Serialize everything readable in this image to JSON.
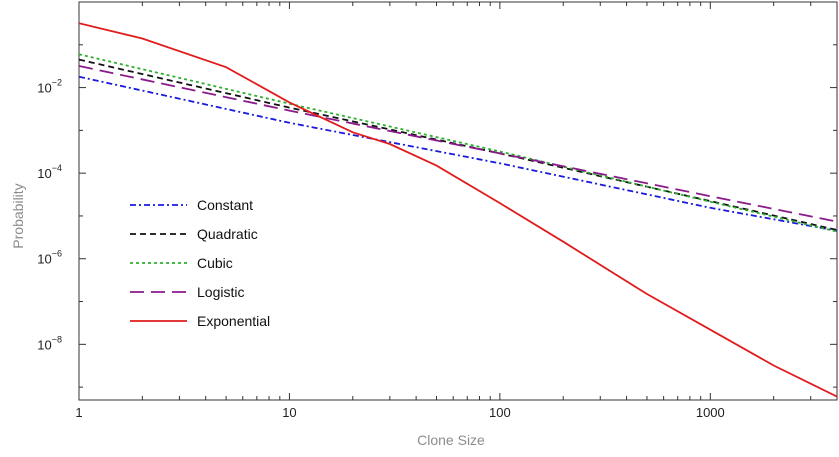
{
  "chart_data": {
    "type": "line",
    "xlabel": "Clone Size",
    "ylabel": "Probability",
    "xscale": "log",
    "yscale": "log",
    "xlim": [
      1,
      4000
    ],
    "ylim": [
      5e-10,
      1
    ],
    "grid": false,
    "legend_position": "middle-left",
    "x_ticks": [
      {
        "value": 1,
        "label": "1"
      },
      {
        "value": 10,
        "label": "10"
      },
      {
        "value": 100,
        "label": "100"
      },
      {
        "value": 1000,
        "label": "1000"
      }
    ],
    "y_ticks": [
      {
        "value": 0.01,
        "base": "10",
        "exp": "−2"
      },
      {
        "value": 0.0001,
        "base": "10",
        "exp": "−4"
      },
      {
        "value": 1e-06,
        "base": "10",
        "exp": "−6"
      },
      {
        "value": 1e-08,
        "base": "10",
        "exp": "−8"
      }
    ],
    "series": [
      {
        "name": "Constant",
        "color": "#1a1adc",
        "dash": "6,3,2,3",
        "x": [
          1,
          10,
          100,
          1000,
          4000
        ],
        "y": [
          0.018,
          0.0015,
          0.00017,
          1.55e-05,
          4.5e-06
        ]
      },
      {
        "name": "Quadratic",
        "color": "#111111",
        "dash": "6,4",
        "x": [
          1,
          10,
          100,
          1000,
          4000
        ],
        "y": [
          0.045,
          0.0034,
          0.00029,
          2.22e-05,
          4.7e-06
        ]
      },
      {
        "name": "Cubic",
        "color": "#2db12d",
        "dash": "3,3",
        "x": [
          1,
          10,
          100,
          1000,
          4000
        ],
        "y": [
          0.06,
          0.0042,
          0.00032,
          2.15e-05,
          4.3e-06
        ]
      },
      {
        "name": "Logistic",
        "color": "#8b1a8b",
        "dash": "14,7",
        "x": [
          1,
          10,
          100,
          1000,
          4000
        ],
        "y": [
          0.032,
          0.0029,
          0.00029,
          2.9e-05,
          7.4e-06
        ]
      },
      {
        "name": "Exponential",
        "color": "#e01c1c",
        "dash": "",
        "x": [
          1,
          2,
          5,
          10,
          20,
          30,
          50,
          100,
          200,
          500,
          1000,
          2000,
          4000
        ],
        "y": [
          0.32,
          0.14,
          0.03,
          0.0045,
          0.0009,
          0.00048,
          0.00015,
          2e-05,
          2.5e-06,
          1.5e-07,
          2.2e-08,
          3.2e-09,
          6e-10
        ]
      }
    ]
  }
}
